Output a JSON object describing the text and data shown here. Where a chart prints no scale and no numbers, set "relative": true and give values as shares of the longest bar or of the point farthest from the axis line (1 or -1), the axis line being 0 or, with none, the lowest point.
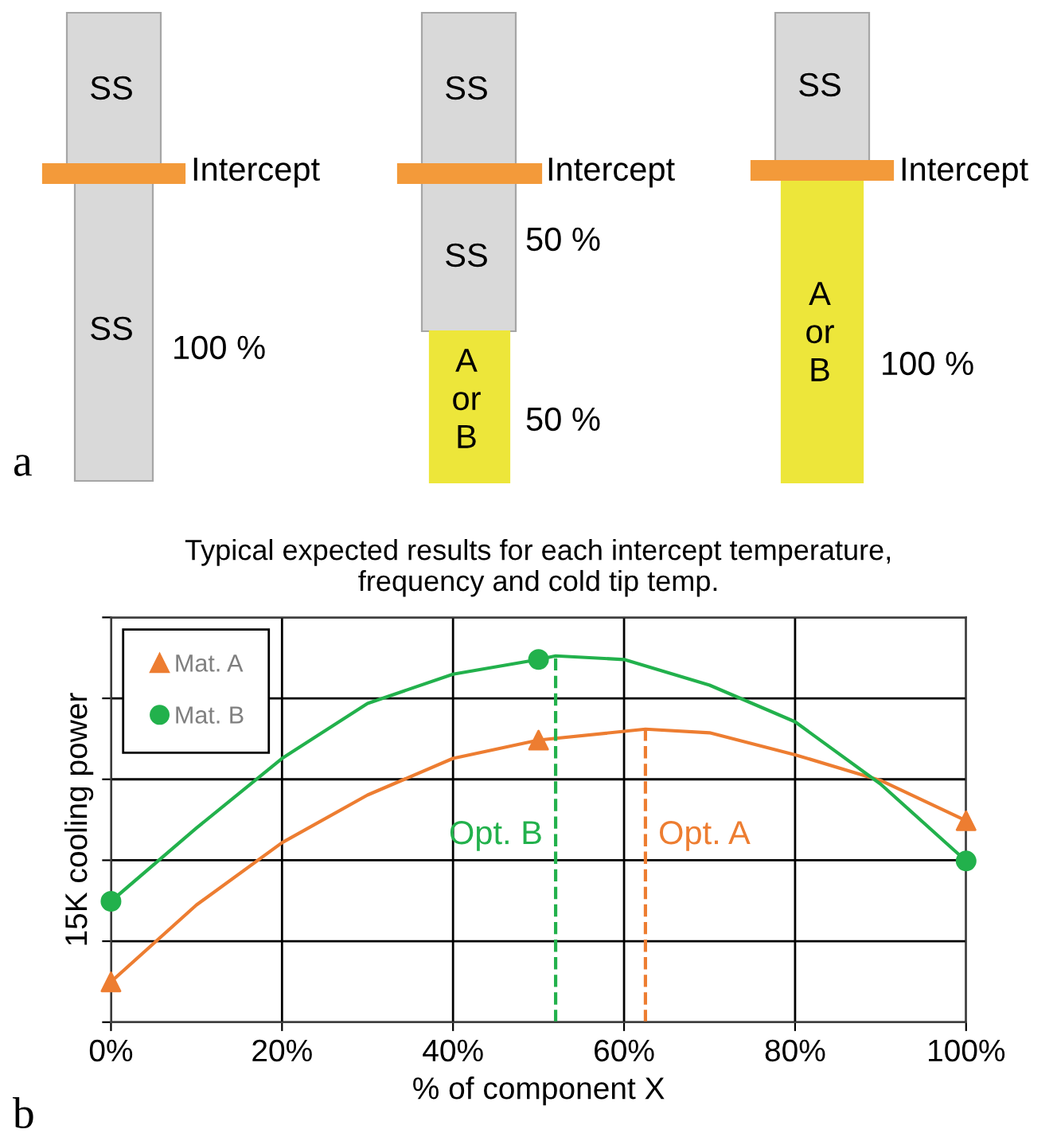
{
  "chart_data": [
    {
      "type": "other",
      "annotations": [
        "SS",
        "Intercept",
        "SS",
        "100 %",
        "SS",
        "Intercept",
        "SS",
        "50 %",
        "A\nor\nB",
        "50 %",
        "SS",
        "Intercept",
        "A\nor\nB",
        "100 %",
        "a"
      ]
    },
    {
      "type": "line",
      "relative": true,
      "title": "Typical expected results for each intercept temperature,\nfrequency and cold tip temp.",
      "xlabel": "% of component X",
      "ylabel": "15K cooling power",
      "xlim": [
        0,
        100
      ],
      "xticks": [
        {
          "value": 0,
          "label": "0%"
        },
        {
          "value": 20,
          "label": "20%"
        },
        {
          "value": 40,
          "label": "40%"
        },
        {
          "value": 60,
          "label": "60%"
        },
        {
          "value": 80,
          "label": "80%"
        },
        {
          "value": 100,
          "label": "100%"
        }
      ],
      "grid": true,
      "legend": "top left",
      "tick_labels": "x",
      "series": [
        {
          "type": "line",
          "color": "#ed7d31",
          "marker": "none",
          "x": [
            0,
            10,
            20,
            30,
            40,
            50,
            62.5,
            70,
            80,
            90,
            100
          ],
          "values": [
            0.11,
            0.32,
            0.49,
            0.62,
            0.72,
            0.77,
            0.8,
            0.79,
            0.73,
            0.66,
            0.55
          ]
        },
        {
          "type": "line",
          "color": "#22b14c",
          "marker": "none",
          "x": [
            0,
            10,
            20,
            30,
            40,
            50,
            52,
            60,
            70,
            80,
            90,
            100
          ],
          "values": [
            0.33,
            0.53,
            0.72,
            0.87,
            0.95,
            0.99,
            1.0,
            0.99,
            0.92,
            0.82,
            0.65,
            0.44
          ]
        },
        {
          "type": "scatter",
          "name": "Mat. A",
          "color": "#ed7d31",
          "marker": "triangle",
          "x": [
            0,
            50,
            100
          ],
          "values": [
            0.11,
            0.77,
            0.55
          ]
        },
        {
          "type": "scatter",
          "name": "Mat. B",
          "color": "#22b14c",
          "marker": "circle",
          "x": [
            0,
            50,
            100
          ],
          "values": [
            0.33,
            0.99,
            0.44
          ]
        }
      ],
      "ref_lines": [
        {
          "axis": "x",
          "value": 52,
          "label": "Opt. B",
          "color": "#22b14c",
          "line_style": "dashed"
        },
        {
          "axis": "x",
          "value": 62.5,
          "label": "Opt. A",
          "color": "#ed7d31",
          "line_style": "dashed"
        }
      ],
      "annotations": [
        "b"
      ]
    }
  ]
}
